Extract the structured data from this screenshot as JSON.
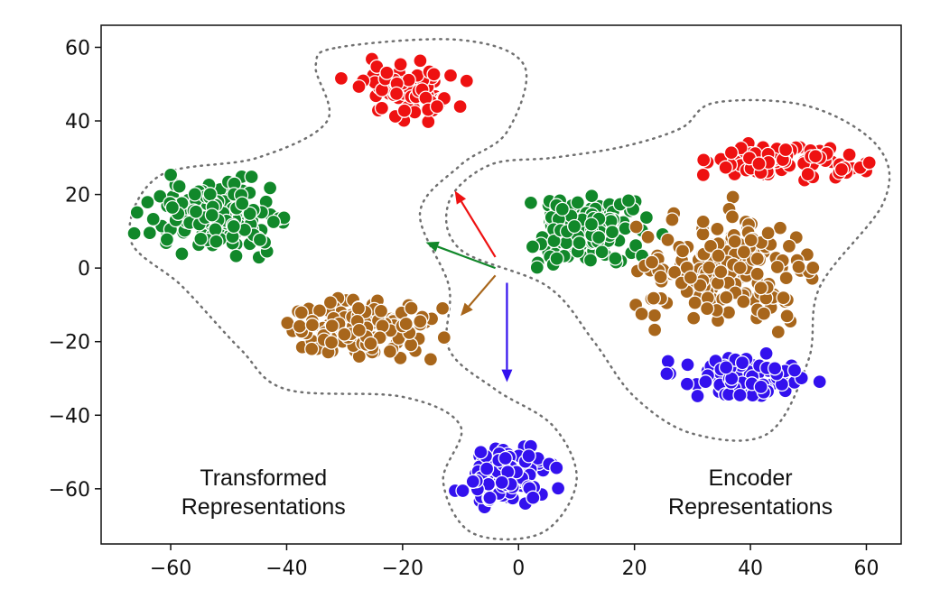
{
  "chart_data": {
    "type": "scatter",
    "title": "",
    "xlabel": "",
    "ylabel": "",
    "xlim": [
      -72,
      66
    ],
    "ylim": [
      -75,
      66
    ],
    "grid": false,
    "xticks": [
      -60,
      -40,
      -20,
      0,
      20,
      40,
      60
    ],
    "yticks": [
      60,
      40,
      20,
      0,
      -20,
      -40,
      -60
    ],
    "colors": {
      "red": "#ee1111",
      "green": "#11882a",
      "brown": "#a8661b",
      "blue": "#3311ee",
      "point_edge": "#ffffff",
      "boundary": "#707070"
    },
    "clusters": [
      {
        "group": "transformed",
        "color": "red",
        "center": [
          -19,
          48
        ],
        "spread": [
          8,
          7
        ],
        "count": 70
      },
      {
        "group": "transformed",
        "color": "green",
        "center": [
          -52,
          14
        ],
        "spread": [
          10,
          8
        ],
        "count": 150
      },
      {
        "group": "transformed",
        "color": "brown",
        "center": [
          -28,
          -17
        ],
        "spread": [
          11,
          7
        ],
        "count": 150
      },
      {
        "group": "transformed",
        "color": "blue",
        "center": [
          -2,
          -56
        ],
        "spread": [
          7,
          7
        ],
        "count": 110
      },
      {
        "group": "encoder",
        "color": "red",
        "center": [
          47,
          29
        ],
        "spread": [
          11,
          5
        ],
        "count": 80
      },
      {
        "group": "encoder",
        "color": "green",
        "center": [
          12,
          10
        ],
        "spread": [
          9,
          9
        ],
        "count": 140
      },
      {
        "group": "encoder",
        "color": "brown",
        "center": [
          36,
          0
        ],
        "spread": [
          13,
          12
        ],
        "count": 190
      },
      {
        "group": "encoder",
        "color": "blue",
        "center": [
          38,
          -30
        ],
        "spread": [
          9,
          5
        ],
        "count": 110
      }
    ],
    "arrows": [
      {
        "color": "red",
        "from": [
          -4,
          3
        ],
        "to": [
          -11,
          21
        ]
      },
      {
        "color": "green",
        "from": [
          -4,
          0
        ],
        "to": [
          -16,
          7
        ]
      },
      {
        "color": "brown",
        "from": [
          -4,
          -2
        ],
        "to": [
          -10,
          -13
        ]
      },
      {
        "color": "blue",
        "from": [
          -2,
          -4
        ],
        "to": [
          -2,
          -31
        ]
      }
    ],
    "annotations": [
      {
        "lines": [
          "Transformed",
          "Representations"
        ],
        "at": [
          -44,
          -61
        ]
      },
      {
        "lines": [
          "Encoder",
          "Representations"
        ],
        "at": [
          40,
          -61
        ]
      }
    ]
  }
}
